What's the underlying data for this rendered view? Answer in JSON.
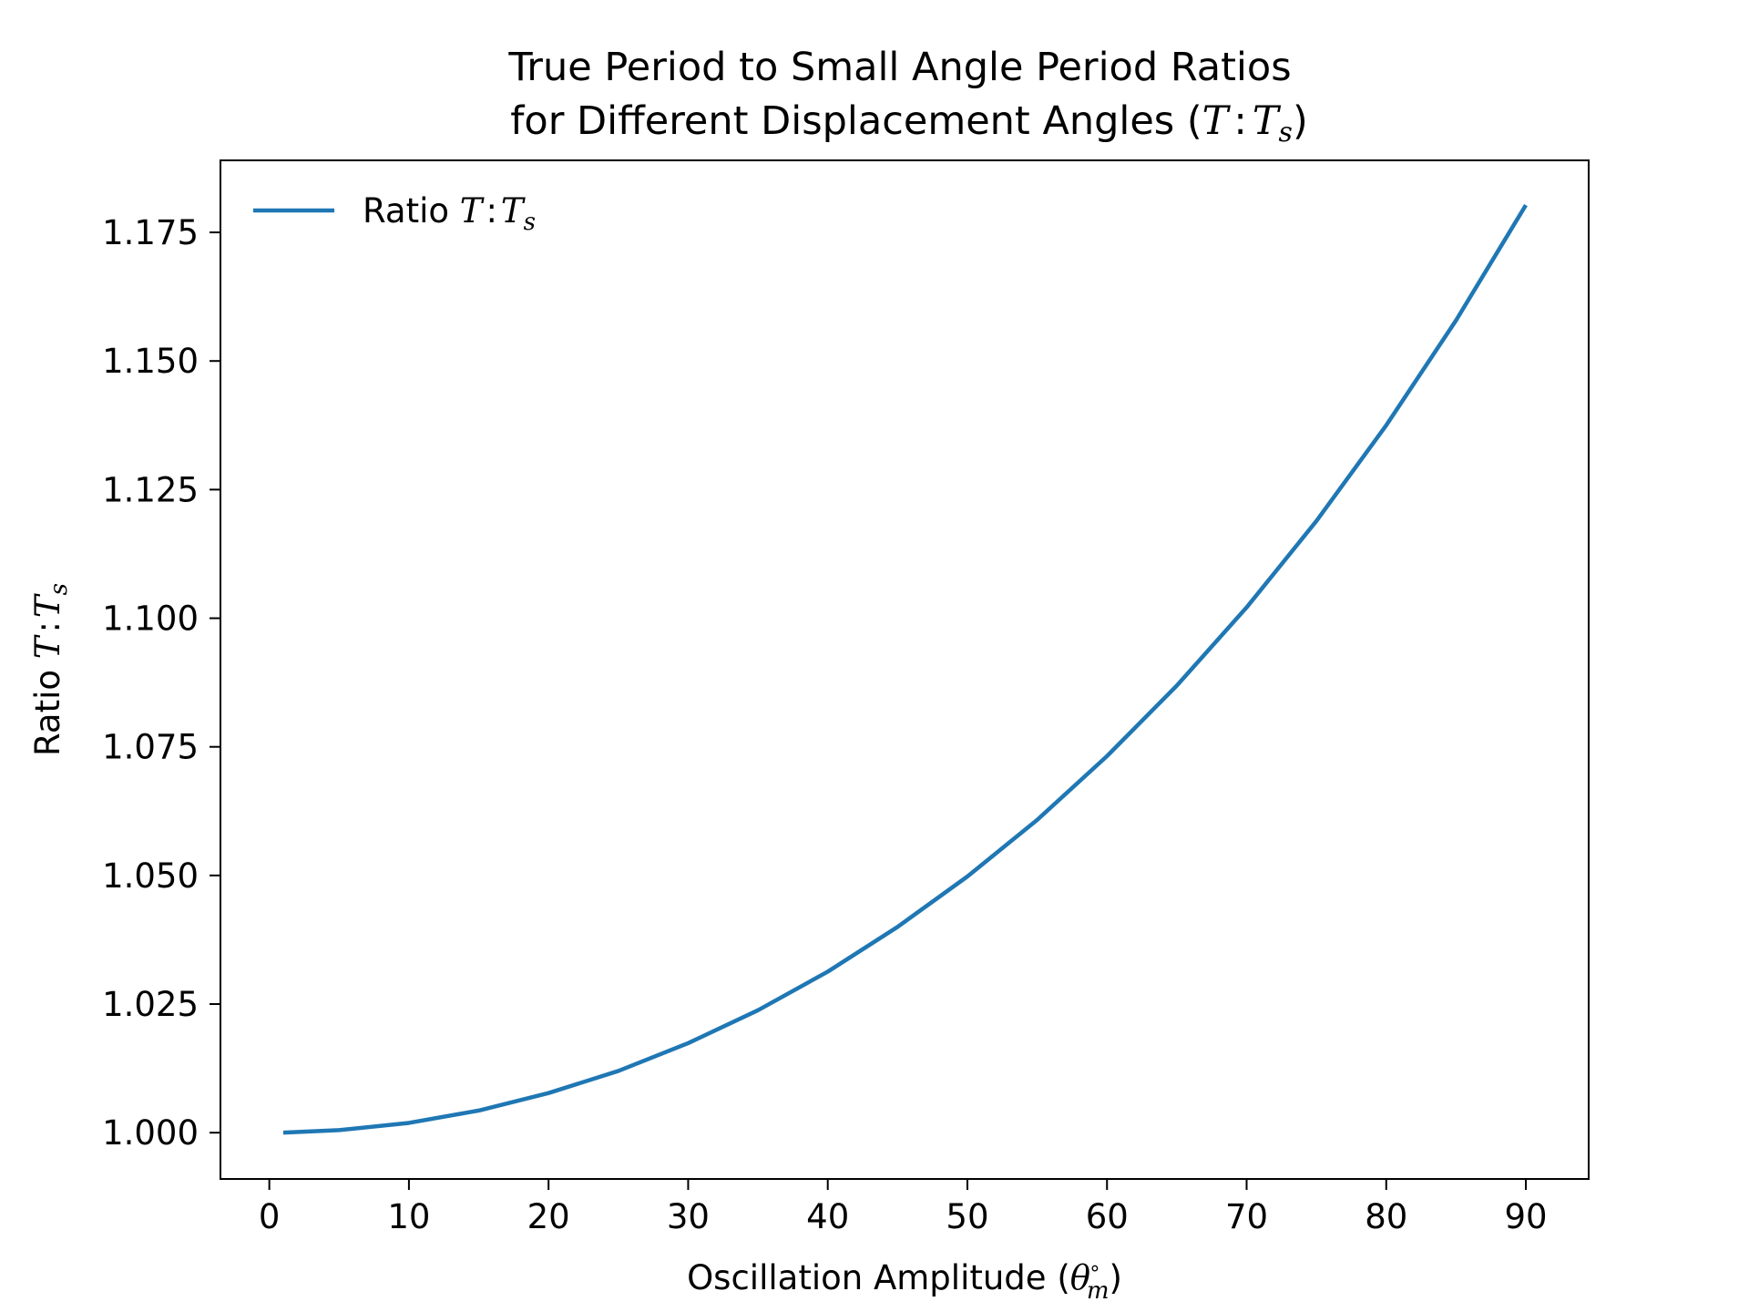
{
  "chart_data": {
    "type": "line",
    "title_line1": "True Period to Small Angle Period Ratios",
    "title_line2_prefix": "for Different Displacement Angles (",
    "title_line2_T": "T",
    "title_line2_colon": ":",
    "title_line2_Ts": "T",
    "title_line2_Ts_sub": "s",
    "title_line2_suffix": ")",
    "xlabel_prefix": "Oscillation Amplitude (",
    "xlabel_theta": "θ",
    "xlabel_sup": "∘",
    "xlabel_sub": "m",
    "xlabel_suffix": ")",
    "ylabel_prefix": "Ratio ",
    "ylabel_T": "T",
    "ylabel_colon": ":",
    "ylabel_Ts": "T",
    "ylabel_Ts_sub": "s",
    "xlim": [
      -3.5,
      94.5
    ],
    "ylim": [
      0.991,
      1.189
    ],
    "xticks": [
      0,
      10,
      20,
      30,
      40,
      50,
      60,
      70,
      80,
      90
    ],
    "xtick_labels": [
      "0",
      "10",
      "20",
      "30",
      "40",
      "50",
      "60",
      "70",
      "80",
      "90"
    ],
    "yticks": [
      1.0,
      1.025,
      1.05,
      1.075,
      1.1,
      1.125,
      1.15,
      1.175
    ],
    "ytick_labels": [
      "1.000",
      "1.025",
      "1.050",
      "1.075",
      "1.100",
      "1.125",
      "1.150",
      "1.175"
    ],
    "grid": false,
    "legend_placement": "upper-left",
    "series": [
      {
        "name_prefix": "Ratio ",
        "name_T": "T",
        "name_colon": ":",
        "name_Ts": "T",
        "name_Ts_sub": "s",
        "color": "#1f77b4",
        "x": [
          1,
          5,
          10,
          15,
          20,
          25,
          30,
          35,
          40,
          45,
          50,
          55,
          60,
          65,
          70,
          75,
          80,
          85,
          90
        ],
        "y": [
          1.0,
          1.0005,
          1.0019,
          1.0043,
          1.0077,
          1.012,
          1.0174,
          1.0238,
          1.0313,
          1.04,
          1.0498,
          1.0608,
          1.0732,
          1.0869,
          1.1021,
          1.1189,
          1.1375,
          1.1579,
          1.1803
        ]
      }
    ]
  }
}
